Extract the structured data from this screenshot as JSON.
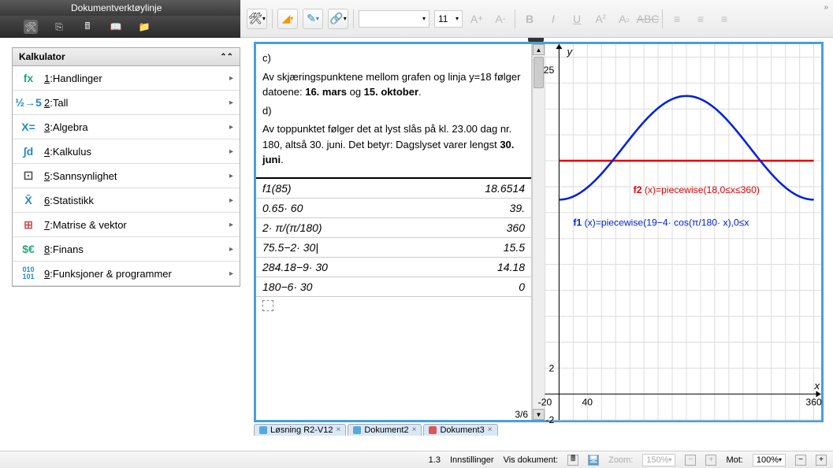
{
  "titlebar": "Dokumentverktøylinje",
  "toolbar": {
    "font_name": "",
    "font_size": "11"
  },
  "sidebar": {
    "header": "Kalkulator",
    "items": [
      {
        "num": "1",
        "label": "Handlinger",
        "icon": "fx",
        "color": "#2a7"
      },
      {
        "num": "2",
        "label": "Tall",
        "icon": "½→5",
        "color": "#28c"
      },
      {
        "num": "3",
        "label": "Algebra",
        "icon": "X=",
        "color": "#28c"
      },
      {
        "num": "4",
        "label": "Kalkulus",
        "icon": "∫d",
        "color": "#28c"
      },
      {
        "num": "5",
        "label": "Sannsynlighet",
        "icon": "⚀",
        "color": "#555"
      },
      {
        "num": "6",
        "label": "Statistikk",
        "icon": "X̄",
        "color": "#28c"
      },
      {
        "num": "7",
        "label": "Matrise & vektor",
        "icon": "⊞",
        "color": "#c55"
      },
      {
        "num": "8",
        "label": "Finans",
        "icon": "$€",
        "color": "#2a7"
      },
      {
        "num": "9",
        "label": "Funksjoner & programmer",
        "icon": "010\n101",
        "color": "#28c"
      }
    ]
  },
  "text": {
    "c_label": "c)",
    "c_line1_a": "Av skjæringspunktene mellom grafen og linja y=18 følger datoene: ",
    "c_bold1": "16. mars",
    "c_mid": " og ",
    "c_bold2": "15. oktober",
    "c_end": ".",
    "d_label": "d)",
    "d_line1": "Av toppunktet følger det at lyst slås på kl. 23.00 dag nr. 180, altså 30. juni. Det betyr: Dagslyset varer lengst ",
    "d_bold": "30. juni",
    "d_end": "."
  },
  "calc": {
    "rows": [
      {
        "lhs": "f1(85)",
        "rhs": "18.6514"
      },
      {
        "lhs": "0.65· 60",
        "rhs": "39."
      },
      {
        "lhs": "2· π/(π/180)",
        "rhs": "360"
      },
      {
        "lhs": "75.5−2· 30|",
        "rhs": "15.5"
      },
      {
        "lhs": "284.18−9· 30",
        "rhs": "14.18"
      },
      {
        "lhs": "180−6· 30",
        "rhs": "0"
      }
    ],
    "pager": "3/6"
  },
  "graph": {
    "xlim": [
      -20,
      370
    ],
    "ylim": [
      -2,
      27
    ],
    "xticks": [
      {
        "x": -20,
        "label": "-20"
      },
      {
        "x": 40,
        "label": "40"
      },
      {
        "x": 360,
        "label": "360"
      }
    ],
    "yticks": [
      {
        "y": -2,
        "label": "-2"
      },
      {
        "y": 2,
        "label": "2"
      },
      {
        "y": 25,
        "label": "25"
      }
    ],
    "x_axis_label": "x",
    "y_axis_label": "y",
    "grid_color": "#ddd",
    "f1_color": "#0020e0",
    "f2_color": "#e00000",
    "f1_label": "f1(x)=piecewise(19−4· cos(π/180· x),0≤x",
    "f2_label": "f2(x)=piecewise(18,0≤x≤360)",
    "f2_y": 18,
    "f1_amp": 4,
    "f1_offset": 19
  },
  "doctabs": [
    {
      "label": "Løsning R2-V12",
      "color": "#5ad"
    },
    {
      "label": "Dokument2",
      "color": "#5ad"
    },
    {
      "label": "Dokument3",
      "color": "#d55"
    }
  ],
  "status": {
    "page": "1.3",
    "settings": "Innstillinger",
    "showdoc": "Vis dokument:",
    "zoom_label": "Zoom:",
    "zoom_val": "150%",
    "mot_label": "Mot:",
    "mot_val": "100%"
  }
}
